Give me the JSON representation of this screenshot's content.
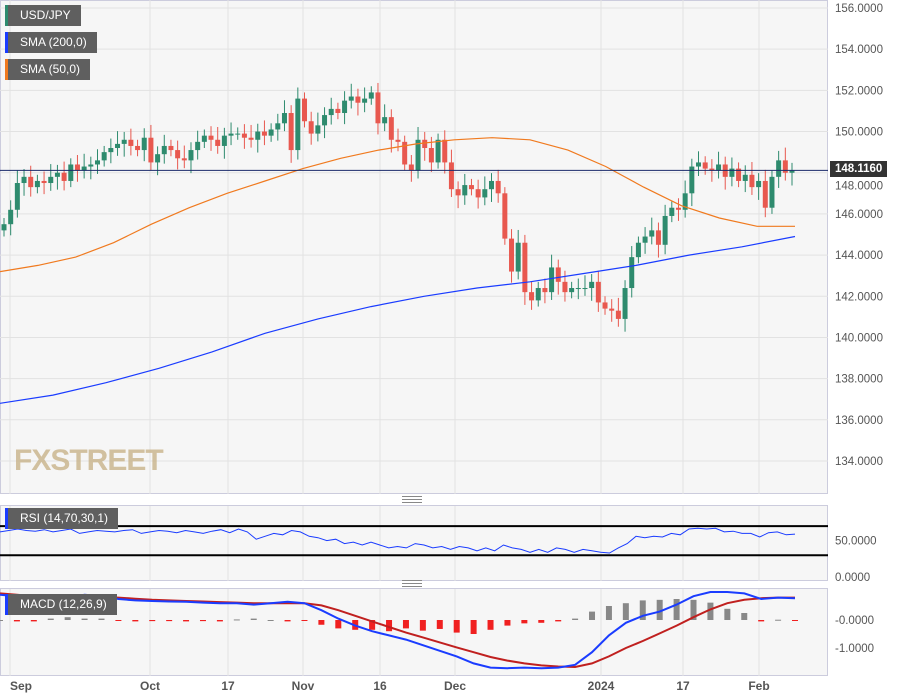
{
  "legend": {
    "symbol": "USD/JPY",
    "sma200": "SMA (200,0)",
    "sma50": "SMA (50,0)",
    "rsi": "RSI (14,70,30,1)",
    "macd": "MACD (12,26,9)"
  },
  "colors": {
    "up": "#2e8b6e",
    "down": "#e8584f",
    "sma200": "#1a3cff",
    "sma50": "#f07a1f",
    "macd": "#1a3cff",
    "signal": "#c0201f"
  },
  "last_price": "148.1160",
  "watermark": "FXSTREET",
  "chart_data": {
    "type": "candlestick",
    "title": "USD/JPY",
    "x_labels": [
      "Sep",
      "Oct",
      "17",
      "Nov",
      "16",
      "Dec",
      "2024",
      "17",
      "Feb"
    ],
    "y_ticks": [
      "156.0000",
      "154.0000",
      "152.0000",
      "150.0000",
      "148.0000",
      "146.0000",
      "144.0000",
      "142.0000",
      "140.0000",
      "138.0000",
      "136.0000",
      "134.0000"
    ],
    "ylim": [
      132.5,
      156.4
    ],
    "closes": [
      145.5,
      146.2,
      147.5,
      147.8,
      147.3,
      147.6,
      147.5,
      147.8,
      148.0,
      147.6,
      148.4,
      148.1,
      148.3,
      148.4,
      148.6,
      149.0,
      149.2,
      149.4,
      149.6,
      149.3,
      149.1,
      149.7,
      148.5,
      148.9,
      149.3,
      149.1,
      148.7,
      148.6,
      149.1,
      149.5,
      149.8,
      149.6,
      149.3,
      149.8,
      149.9,
      149.9,
      149.7,
      149.6,
      150.0,
      149.8,
      150.1,
      150.4,
      150.9,
      149.1,
      151.6,
      150.5,
      149.9,
      150.3,
      150.8,
      151.1,
      150.9,
      151.5,
      151.7,
      151.4,
      151.6,
      151.9,
      150.4,
      150.7,
      149.6,
      149.5,
      148.4,
      148.1,
      149.6,
      149.2,
      148.5,
      149.6,
      148.5,
      147.2,
      146.9,
      147.4,
      147.2,
      146.8,
      147.2,
      147.6,
      147.0,
      144.8,
      143.2,
      144.6,
      142.2,
      141.8,
      142.4,
      142.2,
      143.4,
      142.7,
      142.2,
      142.4,
      142.4,
      142.4,
      142.7,
      141.7,
      141.4,
      141.3,
      140.9,
      142.4,
      143.9,
      144.6,
      144.9,
      145.2,
      144.5,
      145.9,
      146.3,
      146.2,
      147.0,
      148.3,
      148.5,
      148.2,
      148.1,
      148.4,
      147.8,
      148.2,
      147.6,
      147.9,
      147.3,
      147.6,
      146.3,
      147.8,
      148.6,
      148.0,
      148.1
    ],
    "sma50": [
      143.2,
      143.5,
      143.9,
      144.6,
      145.5,
      146.3,
      147.0,
      147.6,
      148.2,
      148.7,
      149.1,
      149.4,
      149.6,
      149.7,
      149.6,
      149.1,
      148.3,
      147.3,
      146.4,
      145.8,
      145.4,
      145.4
    ],
    "sma200": [
      136.8,
      137.2,
      137.8,
      138.5,
      139.3,
      140.2,
      140.9,
      141.5,
      142.0,
      142.4,
      142.7,
      143.1,
      143.5,
      144.0,
      144.4,
      144.9
    ],
    "rsi": {
      "ylim": [
        0,
        100
      ],
      "levels": [
        70,
        30
      ],
      "y_ticks": [
        "50.0000",
        "0.0000"
      ],
      "values": [
        62,
        64,
        66,
        64,
        63,
        65,
        62,
        64,
        66,
        60,
        62,
        64,
        63,
        62,
        64,
        65,
        60,
        62,
        64,
        63,
        61,
        64,
        62,
        60,
        63,
        65,
        61,
        66,
        62,
        52,
        56,
        60,
        58,
        64,
        62,
        56,
        54,
        50,
        52,
        46,
        48,
        44,
        48,
        44,
        40,
        42,
        40,
        46,
        44,
        40,
        42,
        38,
        42,
        40,
        36,
        40,
        36,
        44,
        40,
        38,
        34,
        38,
        34,
        40,
        38,
        34,
        38,
        36,
        34,
        33,
        40,
        46,
        56,
        54,
        56,
        55,
        60,
        58,
        66,
        67,
        66,
        67,
        62,
        63,
        60,
        60,
        55,
        61,
        62,
        58,
        59
      ]
    },
    "macd": {
      "y_ticks": [
        "-0.0000",
        "-1.0000"
      ],
      "macd": [
        0.9,
        0.85,
        0.8,
        0.78,
        0.8,
        0.9,
        0.85,
        0.75,
        0.7,
        0.68,
        0.66,
        0.65,
        0.62,
        0.6,
        0.6,
        0.55,
        0.6,
        0.65,
        0.6,
        0.35,
        0.05,
        -0.2,
        -0.4,
        -0.55,
        -0.7,
        -0.9,
        -1.1,
        -1.3,
        -1.55,
        -1.7,
        -1.72,
        -1.7,
        -1.72,
        -1.7,
        -1.6,
        -1.15,
        -0.55,
        -0.1,
        0.15,
        0.3,
        0.55,
        0.85,
        1.0,
        1.0,
        0.95,
        0.75,
        0.8,
        0.78
      ],
      "signal": [
        0.95,
        0.9,
        0.85,
        0.82,
        0.8,
        0.82,
        0.82,
        0.8,
        0.76,
        0.72,
        0.7,
        0.68,
        0.66,
        0.64,
        0.62,
        0.6,
        0.6,
        0.6,
        0.6,
        0.52,
        0.35,
        0.15,
        -0.05,
        -0.25,
        -0.45,
        -0.62,
        -0.8,
        -0.98,
        -1.15,
        -1.32,
        -1.45,
        -1.55,
        -1.62,
        -1.66,
        -1.68,
        -1.55,
        -1.3,
        -1.0,
        -0.75,
        -0.48,
        -0.2,
        0.1,
        0.38,
        0.6,
        0.72,
        0.78,
        0.8,
        0.8
      ],
      "histogram": [
        0,
        -0.05,
        -0.05,
        0.05,
        0.1,
        0.05,
        0.05,
        -0.02,
        -0.05,
        -0.04,
        -0.04,
        -0.05,
        -0.04,
        -0.05,
        0.02,
        0.05,
        0.0,
        -0.05,
        -0.02,
        -0.17,
        -0.3,
        -0.35,
        -0.35,
        -0.4,
        -0.3,
        -0.38,
        -0.32,
        -0.45,
        -0.5,
        -0.35,
        -0.2,
        -0.12,
        -0.1,
        -0.05,
        0.05,
        0.3,
        0.5,
        0.6,
        0.7,
        0.72,
        0.75,
        0.72,
        0.62,
        0.4,
        0.25,
        -0.05,
        0.01,
        -0.02
      ]
    }
  }
}
